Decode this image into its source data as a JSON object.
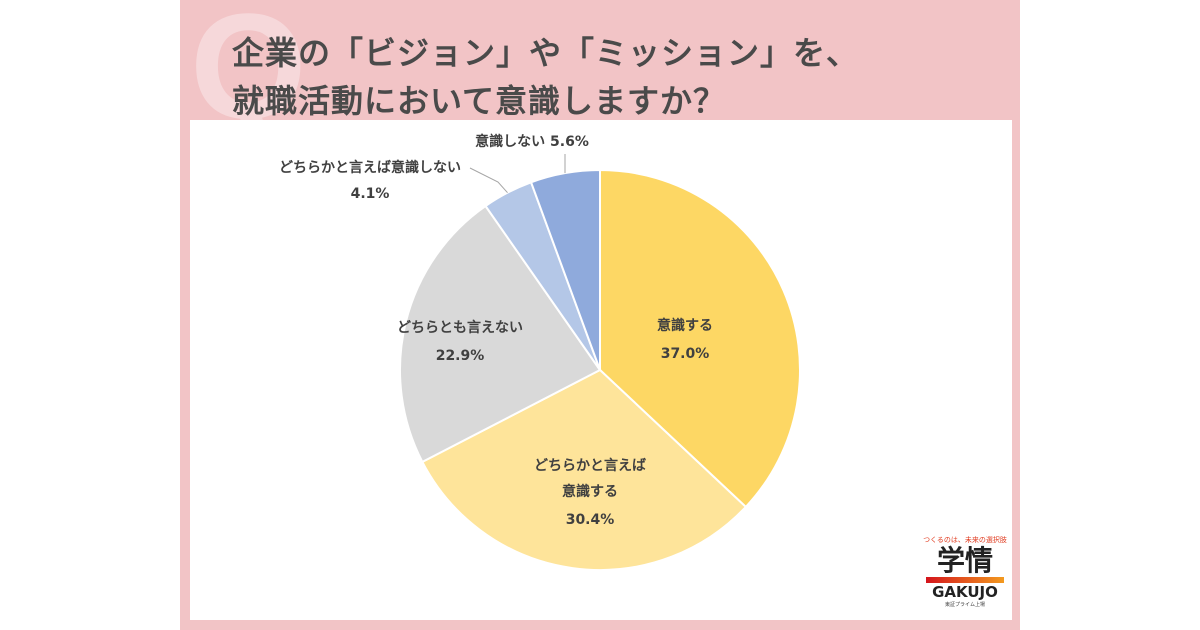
{
  "chart_data": {
    "type": "pie",
    "title": [
      "企業の「ビジョン」や「ミッション」を、",
      "就職活動において意識しますか？"
    ],
    "slices": [
      {
        "label": [
          "意識する"
        ],
        "value": 37.0,
        "pct": "37.0%",
        "color": "#FDD764"
      },
      {
        "label": [
          "どちらかと言えば",
          "意識する"
        ],
        "value": 30.4,
        "pct": "30.4%",
        "color": "#FEE49A"
      },
      {
        "label": [
          "どちらとも言えない"
        ],
        "value": 22.9,
        "pct": "22.9%",
        "color": "#D9D9D9"
      },
      {
        "label": [
          "どちらかと言えば意識しない"
        ],
        "value": 4.1,
        "pct": "4.1%",
        "color": "#B4C7E7"
      },
      {
        "label": [
          "意識しない"
        ],
        "value": 5.6,
        "pct": "5.6%",
        "color": "#8FAADC"
      }
    ],
    "start": "top",
    "direction": "clockwise"
  },
  "logo": {
    "tagline": "つくるのは、未来の選択肢",
    "kanji": "学情",
    "name": "GAKUJO",
    "sub": "東証プライム上場"
  }
}
